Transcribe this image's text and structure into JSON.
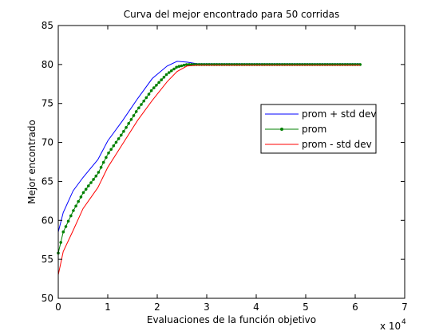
{
  "chart_data": {
    "type": "line",
    "title": "Curva del mejor encontrado para 50 corridas",
    "xlabel": "Evaluaciones de la función objetivo",
    "ylabel": "Mejor encontrado",
    "x_multiplier_label": "x 10",
    "x_multiplier_exponent": "4",
    "xlim": [
      0,
      7
    ],
    "ylim": [
      50,
      85
    ],
    "xticks": [
      "0",
      "1",
      "2",
      "3",
      "4",
      "5",
      "6",
      "7"
    ],
    "yticks": [
      "50",
      "55",
      "60",
      "65",
      "70",
      "75",
      "80",
      "85"
    ],
    "grid": false,
    "legend_position": "right",
    "series": [
      {
        "name": "prom + std dev",
        "color": "#0000ff",
        "marker": "none",
        "x": [
          0,
          0.1,
          0.3,
          0.5,
          0.8,
          1.0,
          1.3,
          1.6,
          1.9,
          2.2,
          2.4,
          2.6,
          2.8,
          3.5,
          4.5,
          5.5,
          6.1
        ],
        "y": [
          58.5,
          61.0,
          63.8,
          65.5,
          67.8,
          70.2,
          72.8,
          75.6,
          78.2,
          79.8,
          80.4,
          80.3,
          80.1,
          80.1,
          80.1,
          80.1,
          80.1
        ]
      },
      {
        "name": "prom",
        "color": "#008000",
        "marker": "dot",
        "x": [
          0,
          0.1,
          0.3,
          0.5,
          0.8,
          1.0,
          1.3,
          1.6,
          1.9,
          2.2,
          2.4,
          2.6,
          2.8,
          3.5,
          4.5,
          5.5,
          6.1
        ],
        "y": [
          55.8,
          58.5,
          61.2,
          63.5,
          66.0,
          68.5,
          71.2,
          74.2,
          76.8,
          78.8,
          79.7,
          80.0,
          80.0,
          80.0,
          80.0,
          80.0,
          80.0
        ]
      },
      {
        "name": "prom - std dev",
        "color": "#ff0000",
        "marker": "none",
        "x": [
          0,
          0.1,
          0.3,
          0.5,
          0.8,
          1.0,
          1.3,
          1.6,
          1.9,
          2.2,
          2.4,
          2.6,
          2.8,
          3.5,
          4.5,
          5.5,
          6.1
        ],
        "y": [
          53.0,
          56.0,
          58.7,
          61.5,
          64.2,
          66.8,
          69.8,
          72.8,
          75.4,
          77.8,
          79.1,
          79.8,
          79.9,
          79.9,
          79.9,
          79.9,
          79.9
        ]
      }
    ]
  }
}
